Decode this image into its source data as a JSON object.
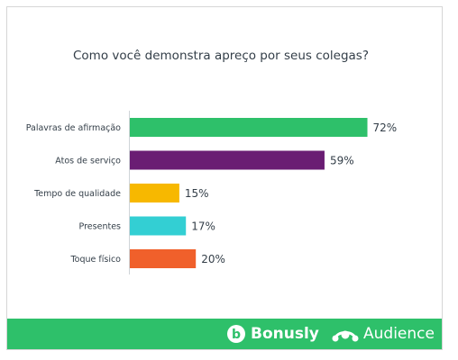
{
  "chart_data": {
    "type": "bar",
    "orientation": "horizontal",
    "title": "Como você demonstra apreço por seus colegas?",
    "categories": [
      "Palavras de afirmação",
      "Atos de serviço",
      "Tempo de qualidade",
      "Presentes",
      "Toque físico"
    ],
    "values": [
      72,
      59,
      15,
      17,
      20
    ],
    "value_labels": [
      "72%",
      "59%",
      "15%",
      "17%",
      "20%"
    ],
    "colors": [
      "#2ec06a",
      "#6a1d73",
      "#f7b800",
      "#33cfd3",
      "#f0602b"
    ],
    "xlim": [
      0,
      100
    ],
    "grid": false,
    "legend": "none"
  },
  "footer": {
    "background": "#2ec06a",
    "brands": [
      {
        "name": "Bonusly",
        "icon": "bonusly-logo-icon"
      },
      {
        "name": "Audience",
        "icon": "surveymonkey-logo-icon"
      }
    ]
  }
}
